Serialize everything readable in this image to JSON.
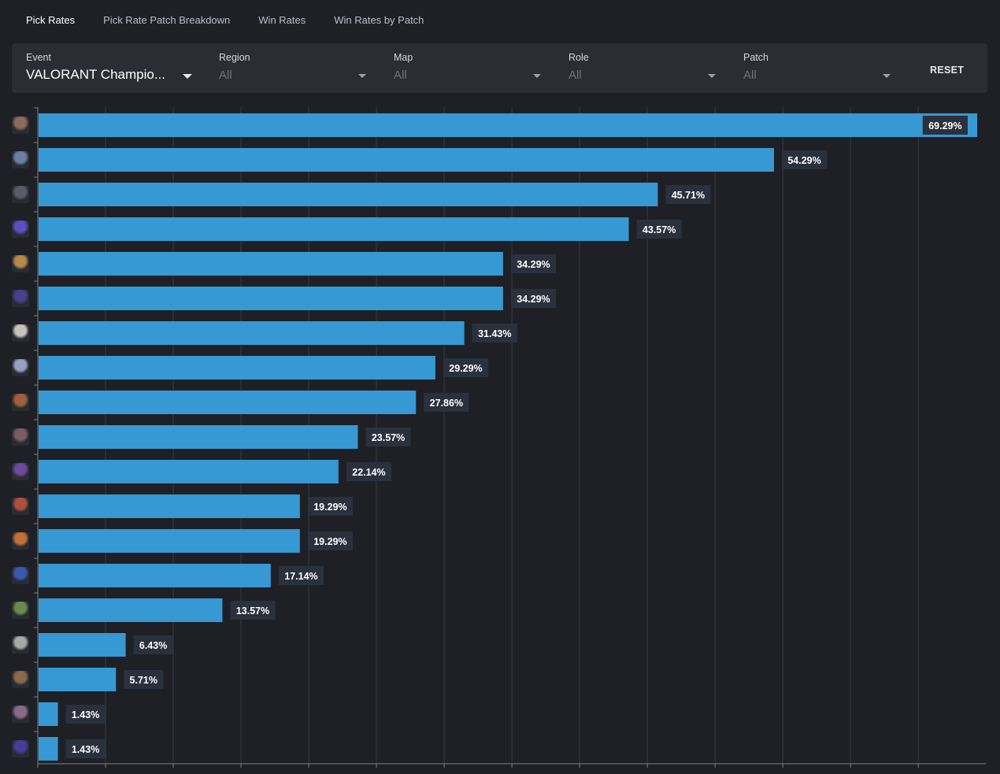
{
  "tabs": [
    {
      "label": "Pick Rates",
      "active": true
    },
    {
      "label": "Pick Rate Patch Breakdown",
      "active": false
    },
    {
      "label": "Win Rates",
      "active": false
    },
    {
      "label": "Win Rates by Patch",
      "active": false
    }
  ],
  "filters": {
    "event": {
      "label": "Event",
      "value": "VALORANT Champio..."
    },
    "region": {
      "label": "Region",
      "value": "All"
    },
    "map": {
      "label": "Map",
      "value": "All"
    },
    "role": {
      "label": "Role",
      "value": "All"
    },
    "patch": {
      "label": "Patch",
      "value": "All"
    },
    "reset_label": "RESET"
  },
  "colors": {
    "bar": "#3699d3",
    "label_bg": "#2b303d",
    "grid": "#383b42",
    "axis": "#7a7f88"
  },
  "chart_data": {
    "type": "bar",
    "orientation": "horizontal",
    "xlim": [
      0,
      70
    ],
    "grid": true,
    "value_suffix": "%",
    "icon_colors": [
      "#8c6b5a",
      "#6b7fa3",
      "#5a5d66",
      "#5b4fc2",
      "#b58a4a",
      "#4b3f8f",
      "#c9c2b8",
      "#9a9fc0",
      "#a0603c",
      "#7a5c66",
      "#6a4a9a",
      "#b0503a",
      "#c07038",
      "#3a5ab0",
      "#6a8a4a",
      "#a8a8a8",
      "#8a6a4a",
      "#8a6a8a",
      "#4a3a9a"
    ],
    "values": [
      69.29,
      54.29,
      45.71,
      43.57,
      34.29,
      34.29,
      31.43,
      29.29,
      27.86,
      23.57,
      22.14,
      19.29,
      19.29,
      17.14,
      13.57,
      6.43,
      5.71,
      1.43,
      1.43
    ],
    "labels": [
      "69.29%",
      "54.29%",
      "45.71%",
      "43.57%",
      "34.29%",
      "34.29%",
      "31.43%",
      "29.29%",
      "27.86%",
      "23.57%",
      "22.14%",
      "19.29%",
      "19.29%",
      "17.14%",
      "13.57%",
      "6.43%",
      "5.71%",
      "1.43%",
      "1.43%"
    ]
  }
}
